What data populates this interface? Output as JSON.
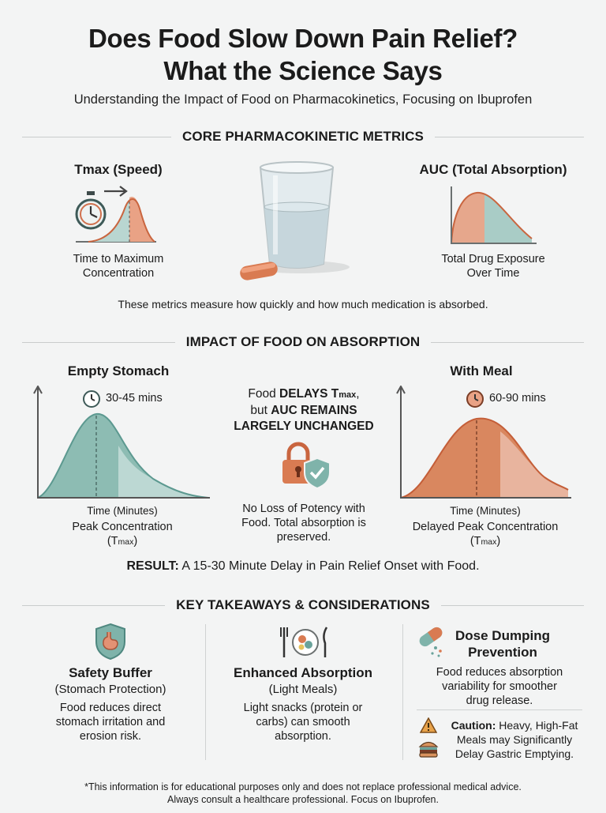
{
  "header": {
    "title_line1": "Does Food Slow Down Pain Relief?",
    "title_line2": "What the Science Says",
    "subtitle": "Understanding the Impact of Food on Pharmacokinetics, Focusing on Ibuprofen"
  },
  "metrics": {
    "heading": "CORE PHARMACOKINETIC METRICS",
    "tmax_title": "Tmax (Speed)",
    "tmax_desc_1": "Time to Maximum",
    "tmax_desc_2": "Concentration",
    "auc_title": "AUC (Total Absorption)",
    "auc_desc_1": "Total Drug Exposure",
    "auc_desc_2": "Over Time",
    "note": "These metrics measure how quickly and how much medication is absorbed."
  },
  "impact": {
    "heading": "IMPACT OF FOOD ON ABSORPTION",
    "empty": {
      "title": "Empty Stomach",
      "time": "30-45 mins",
      "axis": "Time (Minutes)",
      "caption_1": "Peak Concentration",
      "caption_2": "(T",
      "caption_sub": "max",
      "caption_3": ")"
    },
    "meal": {
      "title": "With Meal",
      "time": "60-90 mins",
      "axis": "Time (Minutes)",
      "caption_1": "Delayed Peak Concentration",
      "caption_2": "(T",
      "caption_sub": "max",
      "caption_3": ")"
    },
    "middle": {
      "line1_a": "Food ",
      "line1_b": "DELAYS T",
      "line1_sub": "max",
      "line1_c": ",",
      "line2_a": "but ",
      "line2_b": "AUC REMAINS",
      "line3": "LARGELY UNCHANGED",
      "bottom_1": "No Loss of Potency with",
      "bottom_2": "Food. Total absorption is",
      "bottom_3": "preserved."
    },
    "result_label": "RESULT:",
    "result_text": " A 15-30 Minute Delay in Pain Relief Onset with Food."
  },
  "takeaways": {
    "heading": "KEY TAKEAWAYS & CONSIDERATIONS",
    "safety": {
      "title": "Safety Buffer",
      "sub": "(Stomach Protection)",
      "body_1": "Food reduces direct",
      "body_2": "stomach irritation and",
      "body_3": "erosion risk."
    },
    "enhanced": {
      "title": "Enhanced Absorption",
      "sub": "(Light Meals)",
      "body_1": "Light snacks (protein or",
      "body_2": "carbs) can smooth",
      "body_3": "absorption."
    },
    "dose": {
      "title_1": "Dose Dumping",
      "title_2": "Prevention",
      "body_1": "Food reduces absorption",
      "body_2": "variability for smoother",
      "body_3": "drug release.",
      "caution_label": "Caution:",
      "caution_1": " Heavy, High-Fat",
      "caution_2": "Meals may Significantly",
      "caution_3": "Delay Gastric Emptying."
    }
  },
  "footer": {
    "line1": "*This information is for educational purposes only and does not replace professional medical advice.",
    "line2": "Always consult a healthcare professional. Focus on Ibuprofen."
  },
  "colors": {
    "teal": "#6aa39b",
    "teal_light": "#b9d6d1",
    "orange": "#d0714e",
    "orange_light": "#edb9a4",
    "background": "#f3f4f4"
  }
}
